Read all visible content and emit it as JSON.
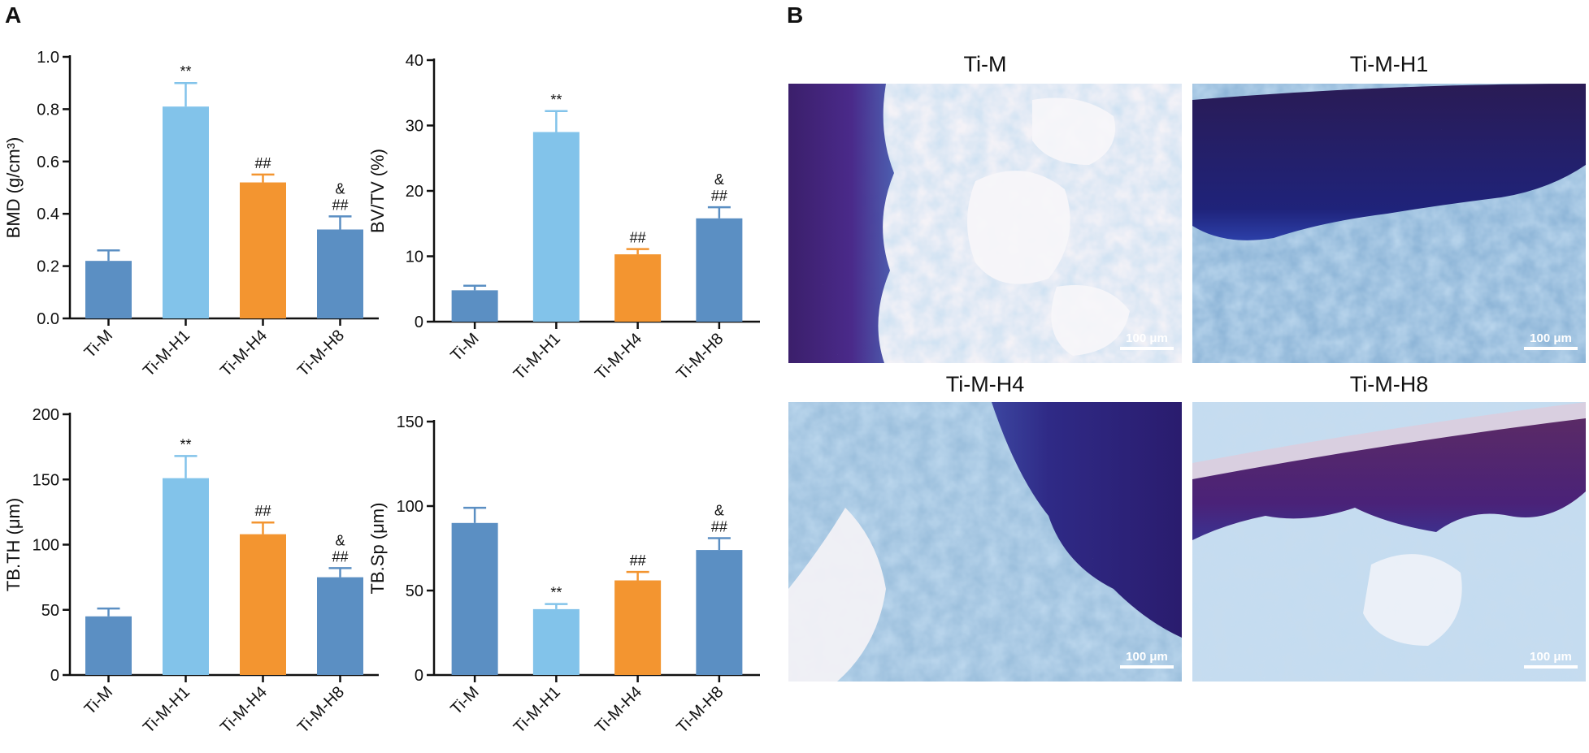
{
  "panels": {
    "a": "A",
    "b": "B"
  },
  "colors": {
    "Ti-M": "#5b8fc3",
    "Ti-M-H1": "#82c3ea",
    "Ti-M-H4": "#f39530",
    "Ti-M-H8": "#5b8fc3",
    "axis": "#111111"
  },
  "chart_data": [
    {
      "type": "bar",
      "ylabel": "BMD (g/cm³)",
      "categories": [
        "Ti-M",
        "Ti-M-H1",
        "Ti-M-H4",
        "Ti-M-H8"
      ],
      "values": [
        0.22,
        0.81,
        0.52,
        0.34
      ],
      "errors": [
        0.04,
        0.09,
        0.03,
        0.05
      ],
      "significance": [
        "",
        "**",
        "##",
        "&\n##"
      ],
      "ylim": [
        0,
        1.0
      ],
      "yticks": [
        "0.0",
        "0.2",
        "0.4",
        "0.6",
        "0.8",
        "1.0"
      ]
    },
    {
      "type": "bar",
      "ylabel": "BV/TV (%)",
      "categories": [
        "Ti-M",
        "Ti-M-H1",
        "Ti-M-H4",
        "Ti-M-H8"
      ],
      "values": [
        4.8,
        29.0,
        10.3,
        15.8
      ],
      "errors": [
        0.7,
        3.2,
        0.8,
        1.7
      ],
      "significance": [
        "",
        "**",
        "##",
        "&\n##"
      ],
      "ylim": [
        0,
        40
      ],
      "yticks": [
        "0",
        "10",
        "20",
        "30",
        "40"
      ]
    },
    {
      "type": "bar",
      "ylabel": "TB.TH (μm)",
      "categories": [
        "Ti-M",
        "Ti-M-H1",
        "Ti-M-H4",
        "Ti-M-H8"
      ],
      "values": [
        45,
        151,
        108,
        75
      ],
      "errors": [
        6,
        17,
        9,
        7
      ],
      "significance": [
        "",
        "**",
        "##",
        "&\n##"
      ],
      "ylim": [
        0,
        200
      ],
      "yticks": [
        "0",
        "50",
        "100",
        "150",
        "200"
      ]
    },
    {
      "type": "bar",
      "ylabel": "TB.Sp (μm)",
      "categories": [
        "Ti-M",
        "Ti-M-H1",
        "Ti-M-H4",
        "Ti-M-H8"
      ],
      "values": [
        90,
        39,
        56,
        74
      ],
      "errors": [
        9,
        3,
        5,
        7
      ],
      "significance": [
        "",
        "**",
        "##",
        "&\n##"
      ],
      "ylim": [
        0,
        150
      ],
      "yticks": [
        "0",
        "50",
        "100",
        "150"
      ]
    }
  ],
  "micrographs": [
    {
      "title": "Ti-M",
      "scale": "100 μm",
      "stain": "cartilage-left"
    },
    {
      "title": "Ti-M-H1",
      "scale": "100 μm",
      "stain": "cartilage-top"
    },
    {
      "title": "Ti-M-H4",
      "scale": "100 μm",
      "stain": "cartilage-right"
    },
    {
      "title": "Ti-M-H8",
      "scale": "100 μm",
      "stain": "cartilage-top-purple"
    }
  ]
}
